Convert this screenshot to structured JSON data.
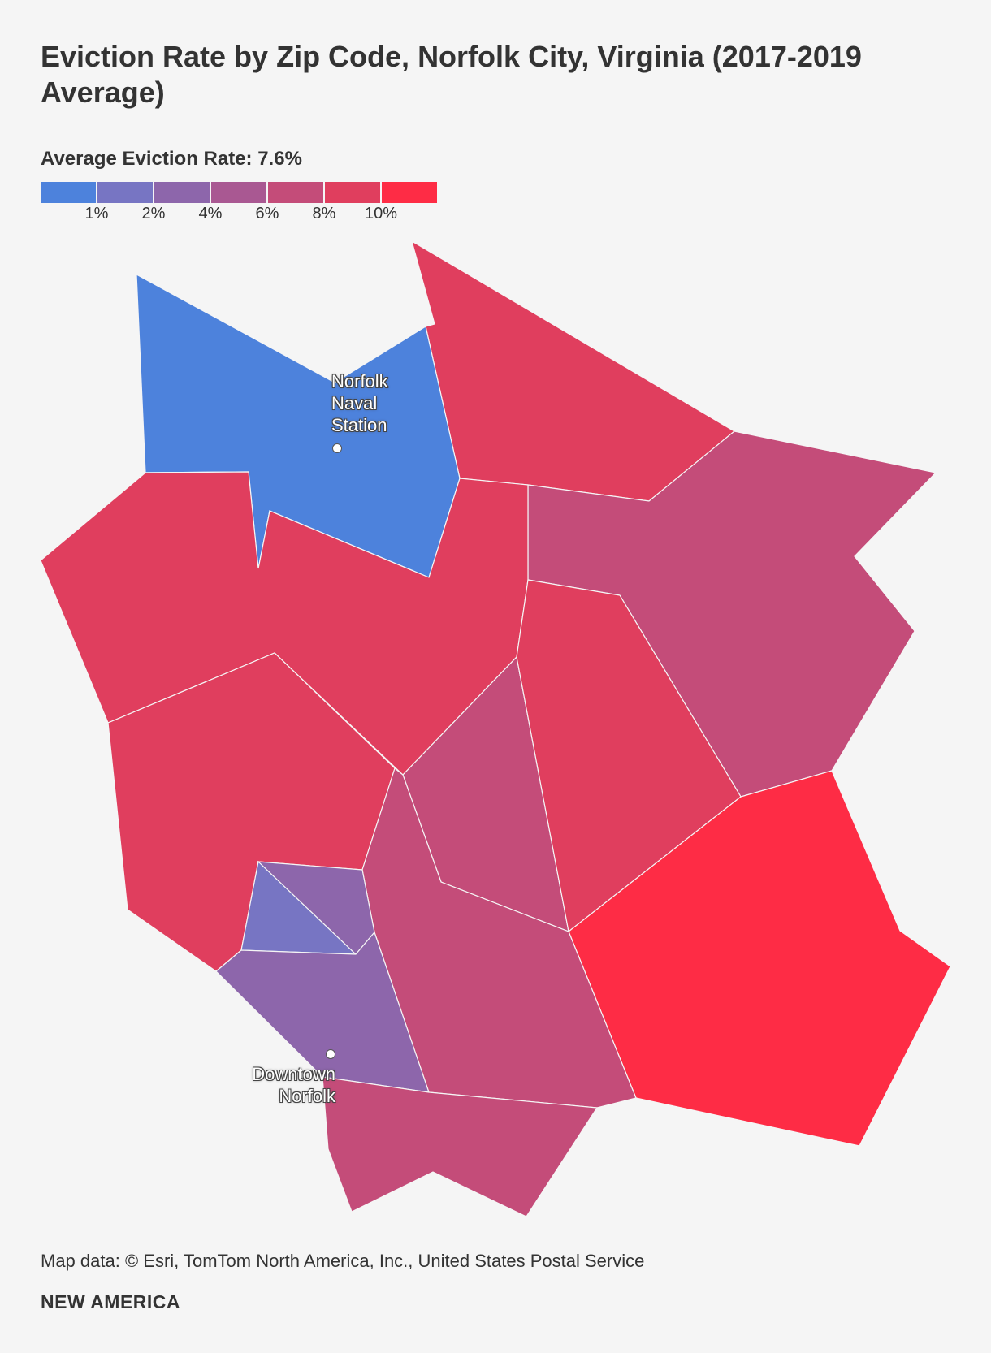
{
  "header": {
    "title": "Eviction Rate by Zip Code, Norfolk City, Virginia (2017-2019 Average)"
  },
  "legend": {
    "title": "Average Eviction Rate: 7.6%",
    "colors": [
      "#4d82dc",
      "#7775c3",
      "#8d66ab",
      "#a95892",
      "#c44c79",
      "#e03e5e",
      "#fe2c45"
    ],
    "ticks": [
      "1%",
      "2%",
      "4%",
      "6%",
      "8%",
      "10%"
    ]
  },
  "map": {
    "places": [
      {
        "name": "Norfolk\nNaval\nStation",
        "icon": "location-dot-icon"
      },
      {
        "name": "Downtown\nNorfolk",
        "icon": "location-dot-icon"
      }
    ]
  },
  "footer": {
    "source": "Map data: © Esri, TomTom North America, Inc., United States Postal Service",
    "brand": "NEW AMERICA"
  }
}
